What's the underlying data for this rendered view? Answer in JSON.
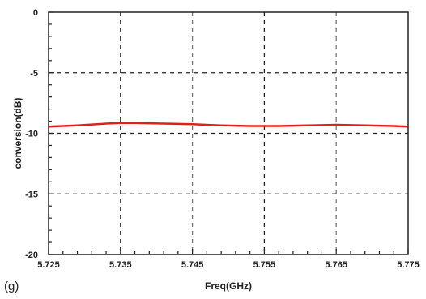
{
  "chart_data": {
    "type": "line",
    "panel_label": "(g)",
    "xlabel": "Freq(GHz)",
    "ylabel": "conversion(dB)",
    "xlim": [
      5.725,
      5.775
    ],
    "ylim": [
      -20,
      0
    ],
    "x_ticks": [
      5.725,
      5.735,
      5.745,
      5.755,
      5.765,
      5.775
    ],
    "x_tick_labels": [
      "5.725",
      "5.735",
      "5.745",
      "5.755",
      "5.765",
      "5.775"
    ],
    "y_ticks": [
      0,
      -5,
      -10,
      -15,
      -20
    ],
    "y_tick_labels": [
      "0",
      "-5",
      "-10",
      "-15",
      "-20"
    ],
    "grid": true,
    "grid_style": "dashed",
    "series": [
      {
        "color": "#e0201a",
        "x": [
          5.725,
          5.729,
          5.733,
          5.735,
          5.737,
          5.741,
          5.745,
          5.749,
          5.753,
          5.755,
          5.757,
          5.761,
          5.765,
          5.769,
          5.773,
          5.775
        ],
        "y": [
          -9.45,
          -9.35,
          -9.2,
          -9.15,
          -9.15,
          -9.2,
          -9.25,
          -9.35,
          -9.4,
          -9.4,
          -9.4,
          -9.35,
          -9.3,
          -9.35,
          -9.4,
          -9.45
        ]
      }
    ]
  }
}
